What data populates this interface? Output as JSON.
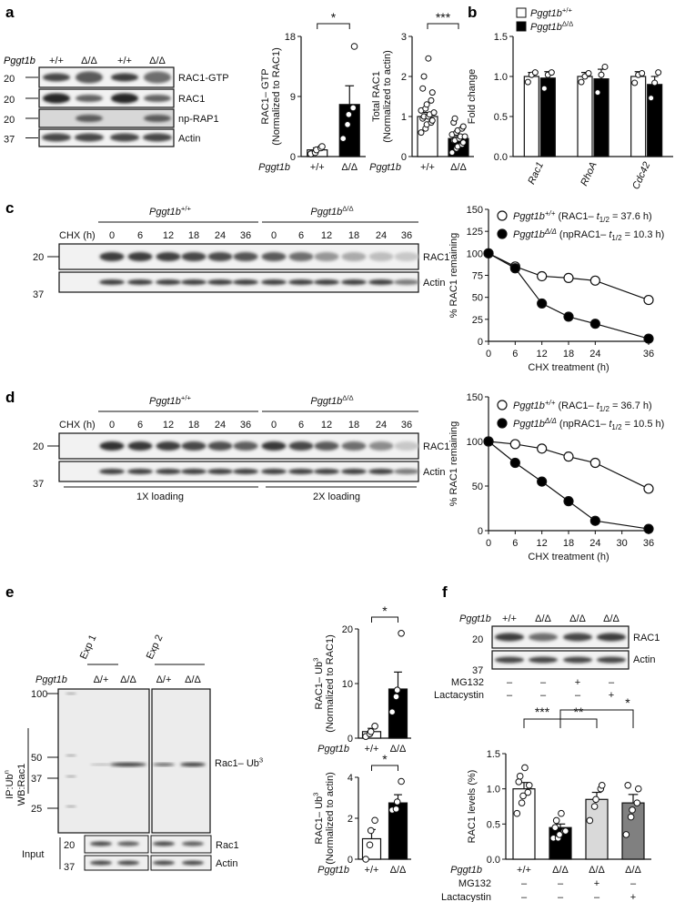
{
  "panels": {
    "a": "a",
    "b": "b",
    "c": "c",
    "d": "d",
    "e": "e",
    "f": "f"
  },
  "common": {
    "genotype_label": "Pggt1b",
    "wt": "+/+",
    "ko": "Δ/Δ",
    "het": "Δ/+",
    "mw20": "20",
    "mw37": "37",
    "mw25": "25",
    "mw50": "50",
    "mw100": "100"
  },
  "blot_a": {
    "lanes": [
      "+/+",
      "Δ/Δ",
      "+/+",
      "Δ/Δ"
    ],
    "bands": [
      "RAC1-GTP",
      "RAC1",
      "np-RAP1",
      "Actin"
    ]
  },
  "blot_c": {
    "cond_wt": "Pggt1b",
    "sup_wt": "+/+",
    "cond_ko": "Pggt1b",
    "sup_ko": "Δ/Δ",
    "chx_label": "CHX (h)",
    "times": [
      "0",
      "6",
      "12",
      "18",
      "24",
      "36",
      "0",
      "6",
      "12",
      "18",
      "24",
      "36"
    ],
    "bands": [
      "RAC1",
      "Actin"
    ]
  },
  "blot_d": {
    "times": [
      "0",
      "6",
      "12",
      "18",
      "24",
      "36",
      "0",
      "6",
      "12",
      "18",
      "24",
      "36"
    ],
    "bands": [
      "RAC1",
      "Actin"
    ],
    "loading1": "1X loading",
    "loading2": "2X loading"
  },
  "blot_e": {
    "exp1": "Exp 1",
    "exp2": "Exp 2",
    "lanes": [
      "Δ/+",
      "Δ/Δ",
      "Δ/+",
      "Δ/Δ"
    ],
    "ip": "IP:Ub",
    "ip_sup": "n",
    "wb": "WB:Rac1",
    "band": "Rac1– Ub",
    "band_sup": "3",
    "input": "Input",
    "input_bands": [
      "Rac1",
      "Actin"
    ]
  },
  "blot_f": {
    "lanes": [
      "+/+",
      "Δ/Δ",
      "Δ/Δ",
      "Δ/Δ"
    ],
    "bands": [
      "RAC1",
      "Actin"
    ],
    "mg132": "MG132",
    "lactacystin": "Lactacystin",
    "mg_signs": [
      "–",
      "–",
      "+",
      "–"
    ],
    "lac_signs": [
      "–",
      "–",
      "–",
      "+"
    ]
  },
  "chart_data": [
    {
      "id": "a1",
      "type": "bar",
      "ylabel": "RAC1– GTP",
      "ylabel2": "(Normalized to RAC1)",
      "ylim": [
        0,
        18
      ],
      "yticks": [
        0,
        9,
        18
      ],
      "categories": [
        "+/+",
        "Δ/Δ"
      ],
      "values": [
        1.0,
        7.8
      ],
      "errors": [
        0.3,
        2.8
      ],
      "points": [
        [
          0.4,
          0.6,
          1.0,
          1.3,
          1.5
        ],
        [
          2.7,
          4.8,
          6.3,
          7.3,
          16.5
        ]
      ],
      "significance": "*"
    },
    {
      "id": "a2",
      "type": "bar",
      "ylabel": "Total RAC1",
      "ylabel2": "(Normalized to actin)",
      "ylim": [
        0,
        3
      ],
      "yticks": [
        0,
        1,
        2,
        3
      ],
      "categories": [
        "+/+",
        "Δ/Δ"
      ],
      "values": [
        1.0,
        0.45
      ],
      "errors": [
        0.1,
        0.05
      ],
      "points": [
        [
          0.6,
          0.7,
          0.8,
          0.85,
          0.9,
          0.95,
          1.0,
          1.0,
          1.05,
          1.1,
          1.15,
          1.2,
          1.3,
          1.4,
          1.6,
          1.7,
          2.0,
          2.45
        ],
        [
          0.1,
          0.2,
          0.25,
          0.3,
          0.35,
          0.4,
          0.4,
          0.45,
          0.5,
          0.5,
          0.55,
          0.6,
          0.65,
          0.7,
          0.75,
          0.85,
          0.95
        ]
      ],
      "significance": "***"
    },
    {
      "id": "b",
      "type": "bar",
      "ylabel": "Fold change",
      "ylim": [
        0,
        1.5
      ],
      "yticks": [
        "0.0",
        "0.5",
        "1.0",
        "1.5"
      ],
      "categories": [
        "Rac1",
        "RhoA",
        "Cdc42"
      ],
      "legend": [
        "Pggt1b",
        "+/+",
        "Pggt1b",
        "Δ/Δ"
      ],
      "series": [
        {
          "name": "+/+",
          "values": [
            1.0,
            1.0,
            1.0
          ],
          "errors": [
            0.05,
            0.05,
            0.06
          ],
          "points": [
            [
              0.93,
              1.02,
              1.05
            ],
            [
              0.93,
              1.0,
              1.04
            ],
            [
              0.92,
              1.02,
              1.04
            ]
          ]
        },
        {
          "name": "Δ/Δ",
          "values": [
            0.98,
            0.97,
            0.9
          ],
          "errors": [
            0.08,
            0.12,
            0.1
          ],
          "points": [
            [
              0.85,
              1.02,
              1.05
            ],
            [
              0.8,
              1.02,
              1.12
            ],
            [
              0.73,
              0.92,
              1.05
            ]
          ]
        }
      ]
    },
    {
      "id": "c",
      "type": "line",
      "ylabel": "% RAC1 remaining",
      "xlabel": "CHX treatment (h)",
      "ylim": [
        0,
        150
      ],
      "yticks": [
        0,
        25,
        50,
        75,
        100,
        125,
        150
      ],
      "x": [
        0,
        6,
        12,
        18,
        24,
        36
      ],
      "xticks": [
        0,
        6,
        12,
        18,
        24,
        36
      ],
      "legend_texts": [
        {
          "g": "Pggt1b",
          "sup": "+/+",
          "rest": " (RAC1– ",
          "t": "t",
          "sub": "1/2",
          "val": " = 37.6 h)"
        },
        {
          "g": "Pggt1b",
          "sup": "Δ/Δ",
          "rest": " (npRAC1– ",
          "t": "t",
          "sub": "1/2",
          "val": " = 10.3 h)"
        }
      ],
      "series": [
        {
          "name": "+/+",
          "values": [
            100,
            85,
            74,
            72,
            69,
            47
          ]
        },
        {
          "name": "Δ/Δ",
          "values": [
            100,
            83,
            43,
            28,
            20,
            3
          ]
        }
      ]
    },
    {
      "id": "d",
      "type": "line",
      "ylabel": "% RAC1 remaining",
      "xlabel": "CHX treatment (h)",
      "ylim": [
        0,
        150
      ],
      "yticks": [
        0,
        50,
        100,
        150
      ],
      "x": [
        0,
        6,
        12,
        18,
        24,
        36
      ],
      "xticks": [
        0,
        6,
        12,
        18,
        24,
        30,
        36
      ],
      "legend_texts": [
        {
          "g": "Pggt1b",
          "sup": "+/+",
          "rest": " (RAC1– ",
          "t": "t",
          "sub": "1/2",
          "val": " = 36.7 h)"
        },
        {
          "g": "Pggt1b",
          "sup": "Δ/Δ",
          "rest": " (npRAC1– ",
          "t": "t",
          "sub": "1/2",
          "val": " = 10.5 h)"
        }
      ],
      "series": [
        {
          "name": "+/+",
          "values": [
            100,
            97,
            92,
            83,
            76,
            47
          ]
        },
        {
          "name": "Δ/Δ",
          "values": [
            100,
            76,
            55,
            33,
            11,
            2
          ]
        }
      ]
    },
    {
      "id": "e1",
      "type": "bar",
      "ylabel": "RAC1– Ub",
      "ylabel_sup": "3",
      "ylabel2": "(Normalized to RAC1)",
      "ylim": [
        0,
        20
      ],
      "yticks": [
        0,
        10,
        20
      ],
      "categories": [
        "+/+",
        "Δ/Δ"
      ],
      "values": [
        1.2,
        9.0
      ],
      "errors": [
        0.6,
        3.1
      ],
      "points": [
        [
          0.3,
          0.8,
          1.2,
          2.2
        ],
        [
          4.8,
          7.6,
          8.8,
          19.2
        ]
      ],
      "significance": "*"
    },
    {
      "id": "e2",
      "type": "bar",
      "ylabel": "RAC1– Ub",
      "ylabel_sup": "3",
      "ylabel2": "(Normalized to actin)",
      "ylim": [
        0,
        4
      ],
      "yticks": [
        0,
        2,
        4
      ],
      "categories": [
        "+/+",
        "Δ/Δ"
      ],
      "values": [
        1.0,
        2.75
      ],
      "errors": [
        0.45,
        0.4
      ],
      "points": [
        [
          0.0,
          0.7,
          1.4,
          1.9
        ],
        [
          2.4,
          2.45,
          2.8,
          3.8
        ]
      ],
      "significance": "*"
    },
    {
      "id": "f",
      "type": "bar",
      "ylabel": "RAC1 levels (%)",
      "ylim": [
        0,
        1.5
      ],
      "yticks": [
        "0.0",
        "0.5",
        "1.0",
        "1.5"
      ],
      "categories": [
        "+/+",
        "Δ/Δ",
        "Δ/Δ",
        "Δ/Δ"
      ],
      "values": [
        1.0,
        0.45,
        0.85,
        0.8
      ],
      "errors": [
        0.09,
        0.05,
        0.1,
        0.12
      ],
      "colors": [
        "#ffffff",
        "#000000",
        "#d9d9d9",
        "#808080"
      ],
      "points": [
        [
          0.65,
          0.8,
          0.9,
          0.95,
          1.05,
          1.1,
          1.18,
          1.3
        ],
        [
          0.3,
          0.3,
          0.35,
          0.4,
          0.4,
          0.45,
          0.55,
          0.65
        ],
        [
          0.55,
          0.75,
          0.85,
          1.0,
          1.05
        ],
        [
          0.35,
          0.6,
          0.7,
          0.8,
          1.0,
          1.05
        ]
      ],
      "sig_brackets": [
        {
          "from": 0,
          "to": 1,
          "label": "***"
        },
        {
          "from": 1,
          "to": 2,
          "label": "**"
        },
        {
          "from": 1,
          "to": 3,
          "label": "*"
        }
      ],
      "mg_signs": [
        "–",
        "–",
        "+",
        "–"
      ],
      "lac_signs": [
        "–",
        "–",
        "–",
        "+"
      ]
    }
  ]
}
